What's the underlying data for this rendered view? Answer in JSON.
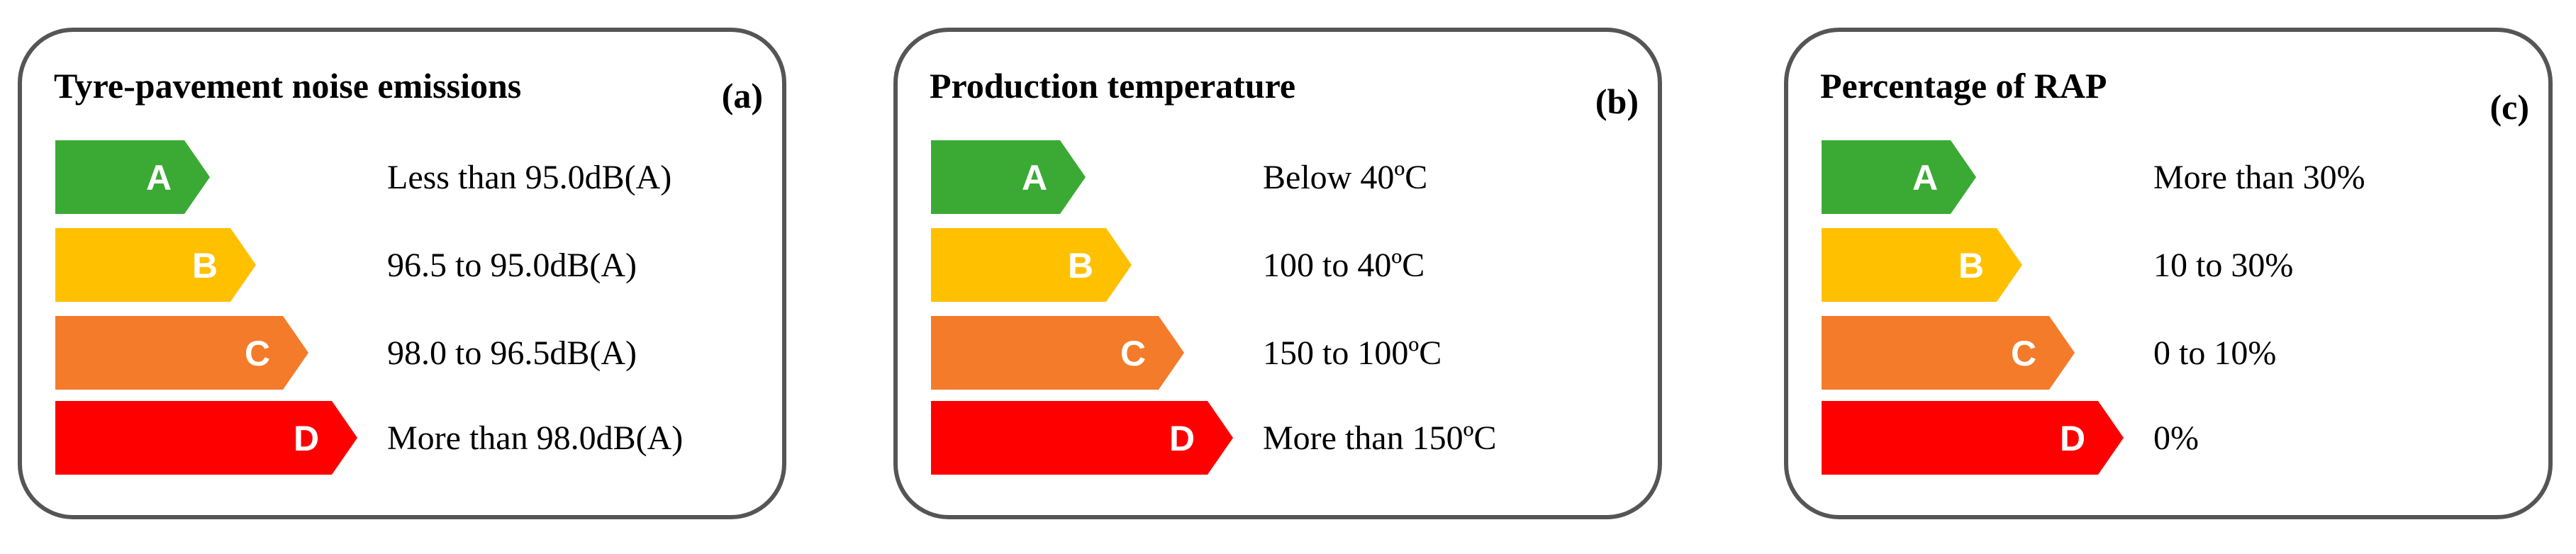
{
  "panels": [
    {
      "title": "Tyre-pavement noise emissions",
      "tag": "(a)",
      "ratings": [
        {
          "grade": "A",
          "label": "Less than 95.0dB(A)"
        },
        {
          "grade": "B",
          "label": "96.5 to 95.0dB(A)"
        },
        {
          "grade": "C",
          "label": "98.0 to 96.5dB(A)"
        },
        {
          "grade": "D",
          "label": "More than 98.0dB(A)"
        }
      ]
    },
    {
      "title": "Production temperature",
      "tag": "(b)",
      "ratings": [
        {
          "grade": "A",
          "label": "Below 40ºC"
        },
        {
          "grade": "B",
          "label": "100 to 40ºC"
        },
        {
          "grade": "C",
          "label": "150 to 100ºC"
        },
        {
          "grade": "D",
          "label": "More than 150ºC"
        }
      ]
    },
    {
      "title": "Percentage of RAP",
      "tag": "(c)",
      "ratings": [
        {
          "grade": "A",
          "label": "More than 30%"
        },
        {
          "grade": "B",
          "label": "10 to 30%"
        },
        {
          "grade": "C",
          "label": "0 to 10%"
        },
        {
          "grade": "D",
          "label": "0%"
        }
      ]
    }
  ]
}
